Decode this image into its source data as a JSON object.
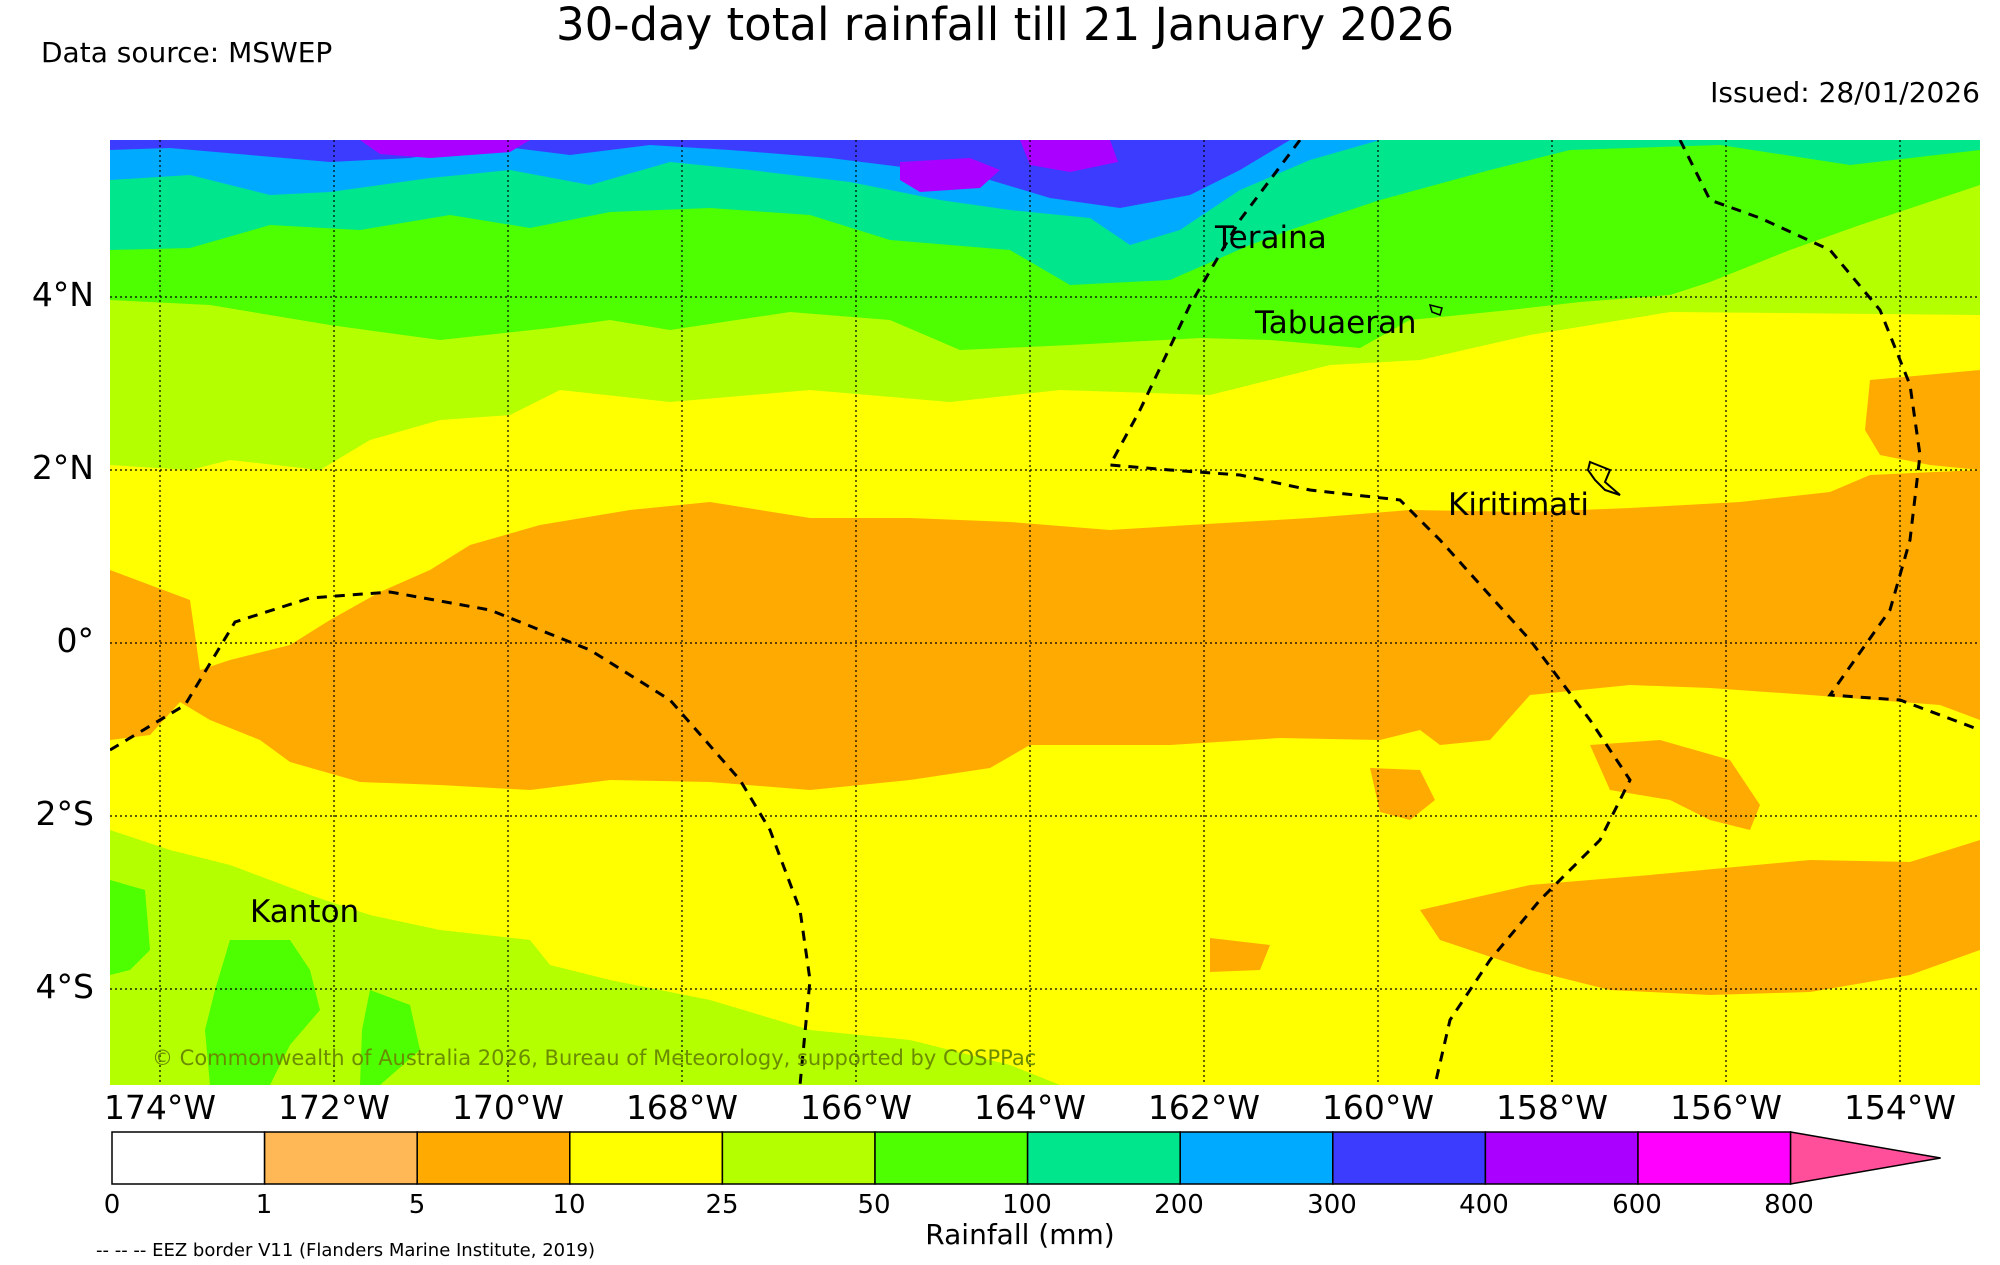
{
  "header": {
    "title": "30-day total rainfall till 21 January 2026",
    "data_source": "Data source: MSWEP",
    "issued": "Issued: 28/01/2026"
  },
  "map": {
    "copyright": "© Commonwealth of Australia 2026, Bureau of Meteorology, supported by COSPPac",
    "lat_labels": [
      "4°N",
      "2°N",
      "0°",
      "2°S",
      "4°S"
    ],
    "lon_labels": [
      "174°W",
      "172°W",
      "170°W",
      "168°W",
      "166°W",
      "164°W",
      "162°W",
      "160°W",
      "158°W",
      "156°W",
      "154°W"
    ],
    "places": [
      {
        "name": "Teraina"
      },
      {
        "name": "Tabuaeran"
      },
      {
        "name": "Kiritimati"
      },
      {
        "name": "Kanton"
      }
    ],
    "eez_color": "#000000"
  },
  "colorbar": {
    "label": "Rainfall (mm)",
    "ticks": [
      "0",
      "1",
      "5",
      "10",
      "25",
      "50",
      "100",
      "200",
      "300",
      "400",
      "600",
      "800"
    ],
    "colors": [
      "#ffffff",
      "#ffb855",
      "#ffaa00",
      "#ffff00",
      "#b4ff00",
      "#4dff00",
      "#00e68c",
      "#00aaff",
      "#3c3cff",
      "#aa00ff",
      "#ff00ff",
      "#ff4f9a"
    ]
  },
  "footnote": "-- -- -- EEZ border V11 (Flanders Marine Institute, 2019)"
}
